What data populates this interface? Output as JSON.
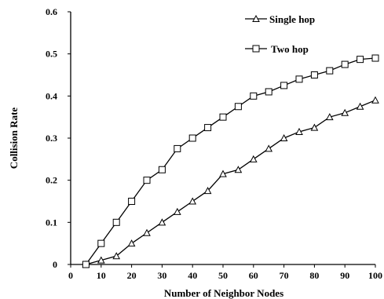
{
  "chart_data": {
    "type": "line",
    "xlabel": "Number of Neighbor Nodes",
    "ylabel": "Collision Rate",
    "xlim": [
      0,
      100
    ],
    "ylim": [
      0,
      0.6
    ],
    "x_ticks": [
      "0",
      "10",
      "20",
      "30",
      "40",
      "50",
      "60",
      "70",
      "80",
      "90",
      "100"
    ],
    "y_ticks": [
      "0",
      "0.1",
      "0.2",
      "0.3",
      "0.4",
      "0.5",
      "0.6"
    ],
    "grid": false,
    "legend_position": "top-right",
    "x": [
      5,
      10,
      15,
      20,
      25,
      30,
      35,
      40,
      45,
      50,
      55,
      60,
      65,
      70,
      75,
      80,
      85,
      90,
      95,
      100
    ],
    "series": [
      {
        "name": "Single hop",
        "marker": "triangle",
        "values": [
          0,
          0.01,
          0.02,
          0.05,
          0.075,
          0.1,
          0.125,
          0.15,
          0.175,
          0.215,
          0.225,
          0.25,
          0.275,
          0.3,
          0.315,
          0.325,
          0.35,
          0.36,
          0.375,
          0.39
        ]
      },
      {
        "name": "Two hop",
        "marker": "square",
        "values": [
          0,
          0.05,
          0.1,
          0.15,
          0.2,
          0.225,
          0.275,
          0.3,
          0.325,
          0.35,
          0.375,
          0.4,
          0.41,
          0.425,
          0.44,
          0.45,
          0.46,
          0.475,
          0.487,
          0.49
        ]
      }
    ]
  }
}
